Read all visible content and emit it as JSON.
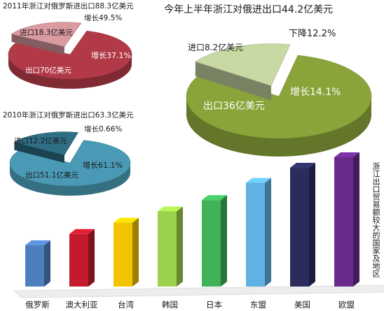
{
  "colors": {
    "pie2011_main": "#b23a48",
    "pie2011_slice": "#d99aa0",
    "pie2010_main": "#4a9ab5",
    "pie2010_slice": "#2f6f86",
    "pie2012_main": "#8aa43a",
    "pie2012_slice": "#c9d9a3",
    "bar_colors": [
      "#4f7ebf",
      "#c41a2c",
      "#f2c400",
      "#9bd14c",
      "#3fb25a",
      "#5fb2e3",
      "#2b2b5e",
      "#6a2a8c"
    ]
  },
  "pies": [
    {
      "id": "2011",
      "title": "2011年浙江对俄罗斯进出口88.3亿美元",
      "import_label": "进口18.3亿美元",
      "import_value": 18.3,
      "export_label": "出口70亿美元",
      "export_value": 70,
      "export_growth_label": "增长37.1%",
      "import_growth_label": "增长49.5%"
    },
    {
      "id": "2010",
      "title": "2010年浙江对俄罗斯进出口63.3亿美元",
      "import_label": "进口12.2亿美元",
      "import_value": 12.2,
      "export_label": "出口51.1亿美元",
      "export_value": 51.1,
      "export_growth_label": "增长61.1%",
      "import_growth_label": "增长0.66%"
    },
    {
      "id": "2012h1",
      "title": "今年上半年浙江对俄进出口44.2亿美元",
      "import_label": "进口8.2亿美元",
      "import_value": 8.2,
      "export_label": "出口36亿美元",
      "export_value": 36,
      "export_growth_label": "增长14.1%",
      "import_growth_label": "下降12.2%"
    }
  ],
  "chart_data": {
    "type": "bar",
    "title": "浙江出口贸易额较大的国家及地区",
    "categories": [
      "俄罗斯",
      "澳大利亚",
      "台湾",
      "韩国",
      "日本",
      "东盟",
      "美国",
      "欧盟"
    ],
    "values": [
      55,
      70,
      85,
      100,
      115,
      138,
      158,
      172
    ],
    "note": "relative bar heights; no value axis shown"
  }
}
